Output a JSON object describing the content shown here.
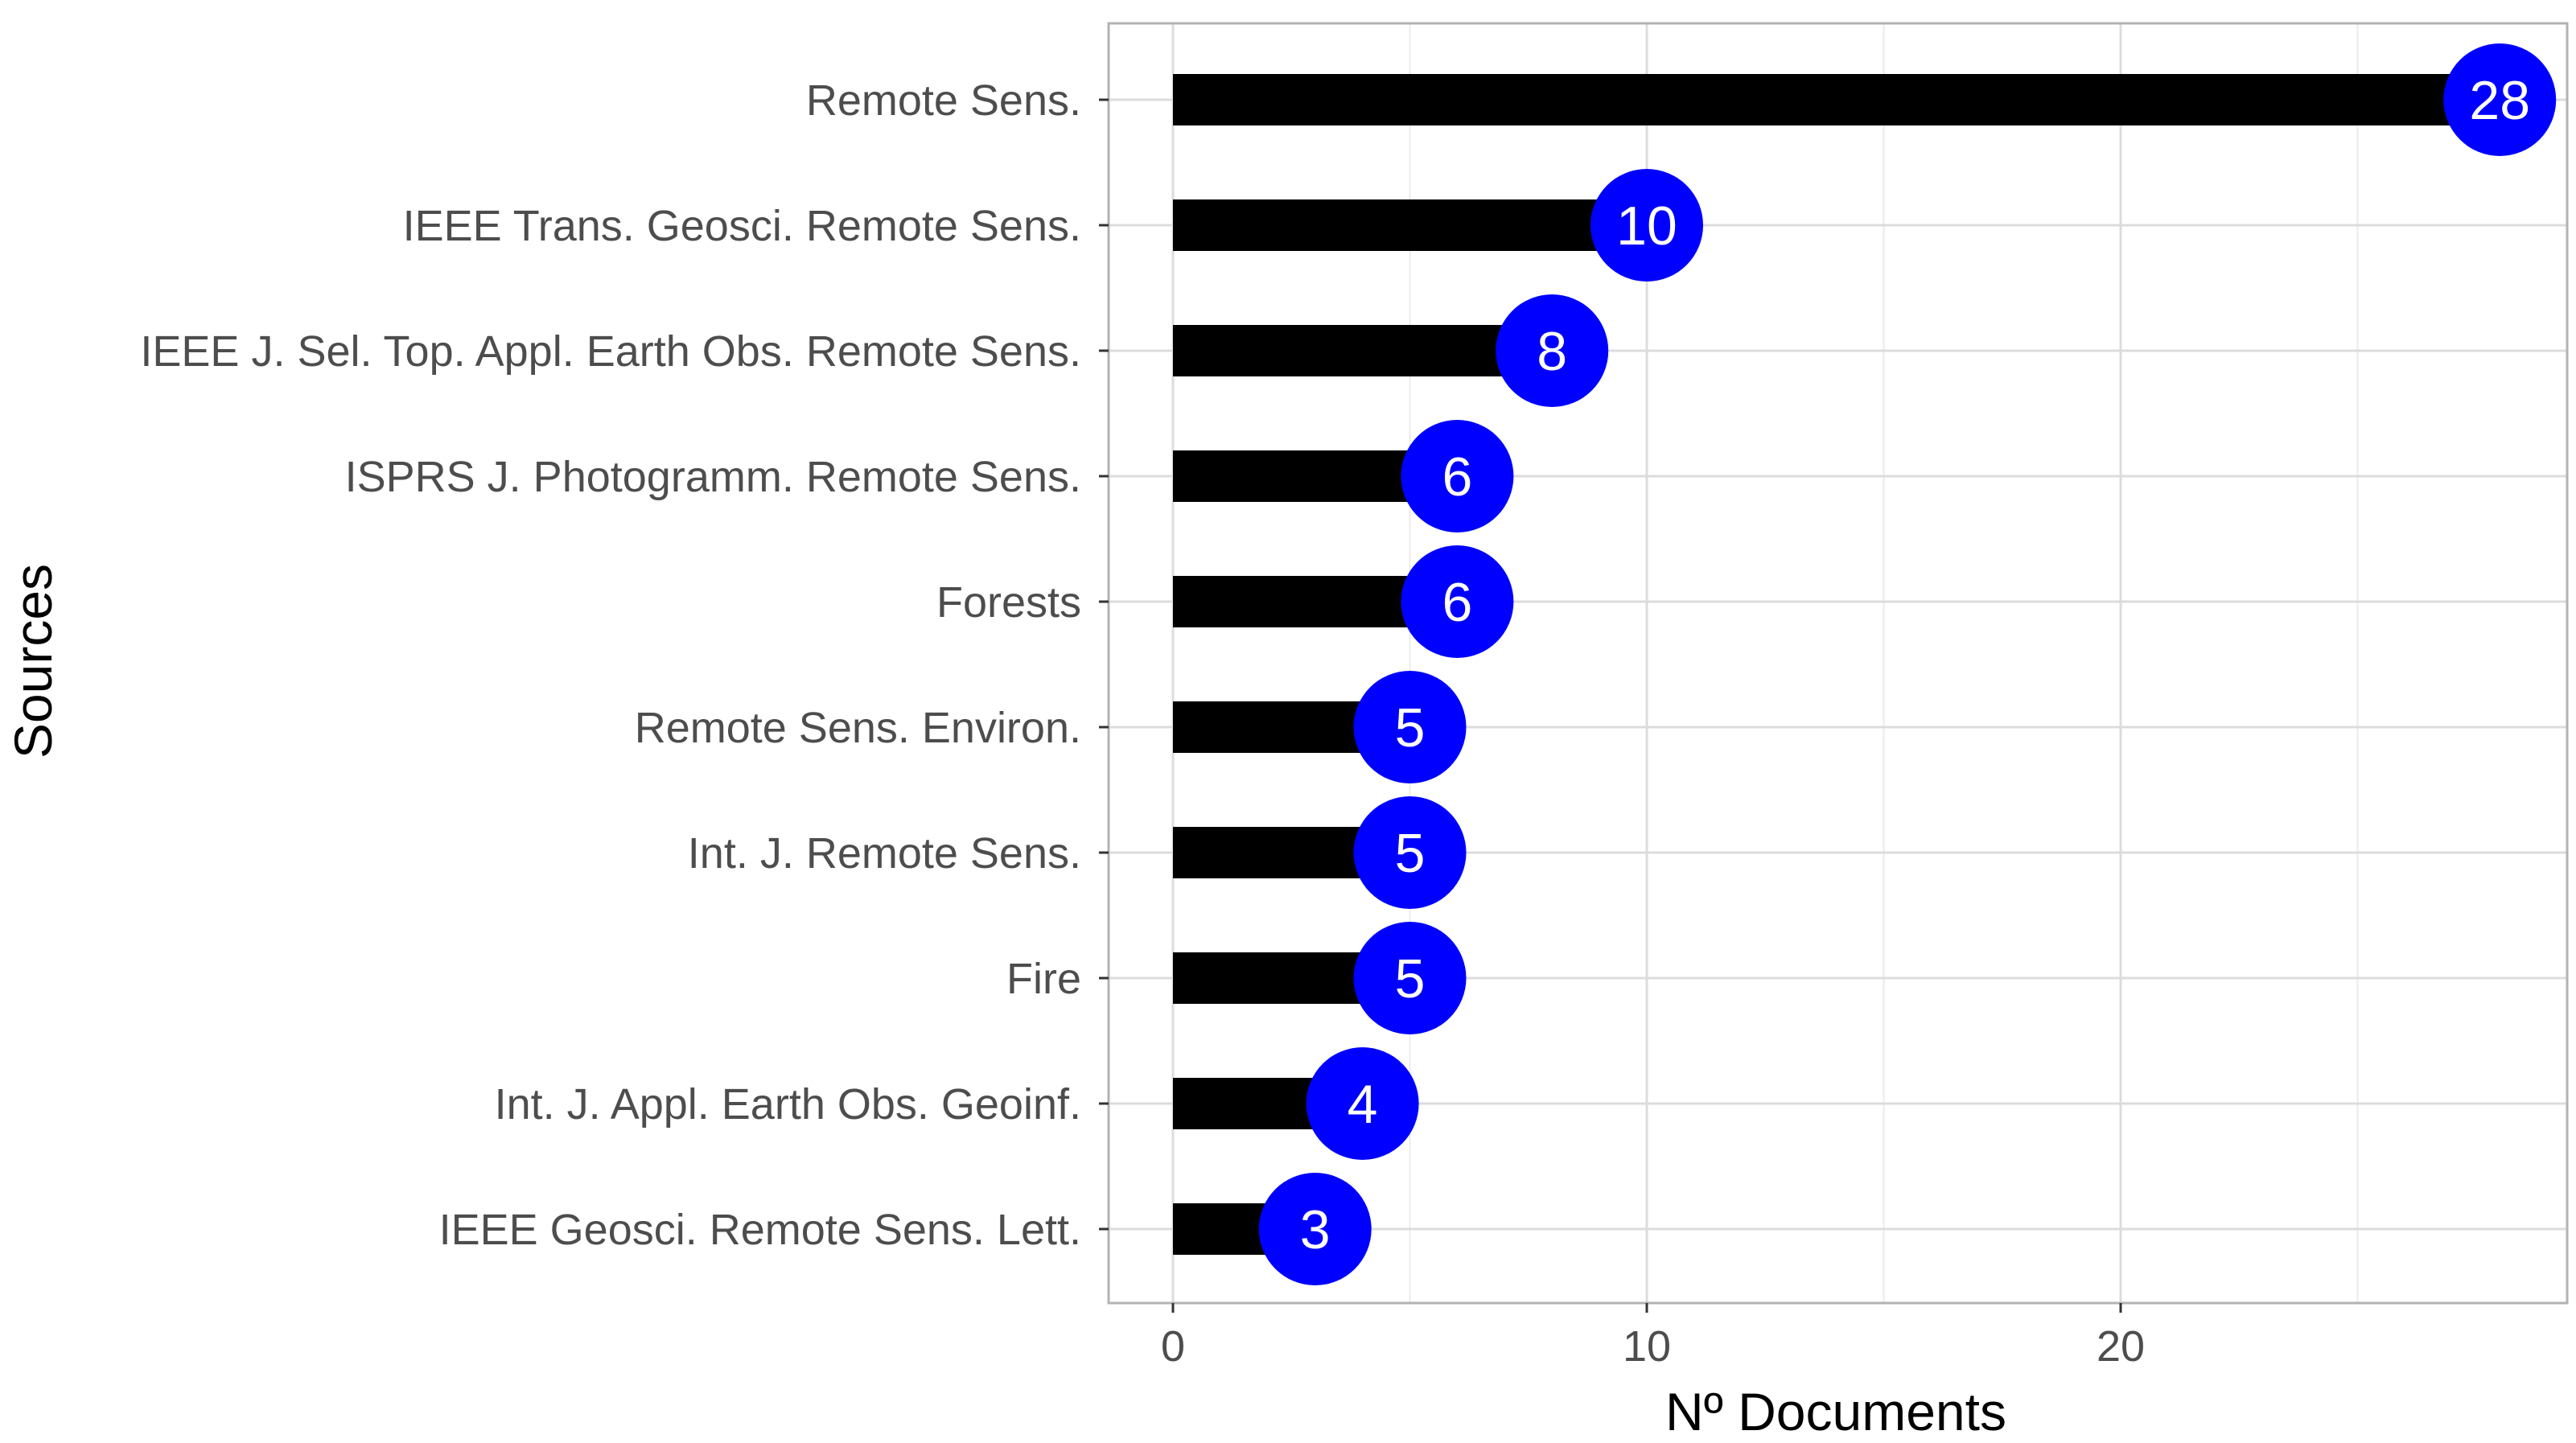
{
  "chart_data": {
    "type": "bar",
    "orientation": "horizontal",
    "style": "lollipop",
    "categories": [
      "Remote Sens.",
      "IEEE Trans. Geosci. Remote Sens.",
      "IEEE J. Sel. Top. Appl. Earth Obs. Remote Sens.",
      "ISPRS J. Photogramm. Remote Sens.",
      "Forests",
      "Remote Sens. Environ.",
      "Int. J. Remote Sens.",
      "Fire",
      "Int. J. Appl. Earth Obs. Geoinf.",
      "IEEE Geosci. Remote Sens. Lett."
    ],
    "values": [
      28,
      10,
      8,
      6,
      6,
      5,
      5,
      5,
      4,
      3
    ],
    "title": "",
    "xlabel": "Nº Documents",
    "ylabel": "Sources",
    "xlim": [
      0,
      28
    ],
    "xticks": [
      0,
      10,
      20
    ],
    "grid": true,
    "legend": "none",
    "colors": {
      "bar": "#000000",
      "dot": "#0000ff",
      "dot_label": "#ffffff",
      "grid": "#dcdcdc",
      "panel_border": "#b3b3b3",
      "tick_text": "#4d4d4d"
    }
  }
}
